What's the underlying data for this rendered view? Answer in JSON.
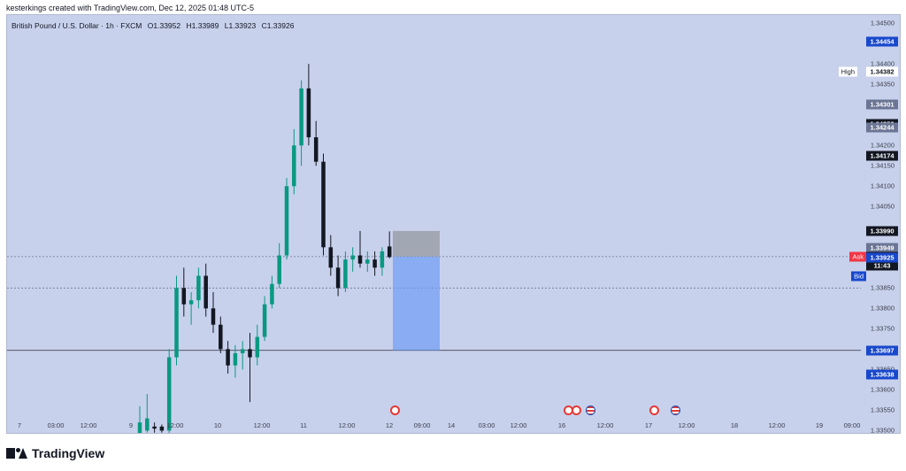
{
  "header": {
    "attribution": "kesterkings created with TradingView.com, Dec 12, 2025 01:48 UTC-5"
  },
  "legend": {
    "symbol": "British Pound / U.S. Dollar · 1h · FXCM",
    "open": "O1.33952",
    "high": "H1.33989",
    "low": "L1.33923",
    "close": "C1.33926"
  },
  "price_axis": {
    "ticks": [
      "1.34500",
      "1.34400",
      "1.34350",
      "1.34200",
      "1.34150",
      "1.34100",
      "1.34050",
      "1.33850",
      "1.33800",
      "1.33750",
      "1.33650",
      "1.33600",
      "1.33550",
      "1.33500"
    ],
    "tags": [
      {
        "value": "1.34454",
        "bg": "#1848cc",
        "fg": "#ffffff"
      },
      {
        "value": "1.34382",
        "bg": "#ffffff",
        "fg": "#131722"
      },
      {
        "value": "1.34301",
        "bg": "#6b7594",
        "fg": "#ffffff"
      },
      {
        "value": "1.34252",
        "bg": "#131722",
        "fg": "#ffffff"
      },
      {
        "value": "1.34244",
        "bg": "#6b7594",
        "fg": "#ffffff"
      },
      {
        "value": "1.34174",
        "bg": "#131722",
        "fg": "#ffffff"
      },
      {
        "value": "1.33990",
        "bg": "#131722",
        "fg": "#ffffff"
      },
      {
        "value": "1.33949",
        "bg": "#6b7594",
        "fg": "#ffffff"
      },
      {
        "value": "1.33927",
        "bg": "#f23645",
        "fg": "#ffffff"
      },
      {
        "value": "1.33926",
        "bg": "#131722",
        "fg": "#ffffff"
      },
      {
        "value": "11:43",
        "bg": "#131722",
        "fg": "#ffffff"
      },
      {
        "value": "1.33925",
        "bg": "#1848cc",
        "fg": "#ffffff"
      },
      {
        "value": "1.33697",
        "bg": "#1848cc",
        "fg": "#ffffff"
      },
      {
        "value": "1.33638",
        "bg": "#1848cc",
        "fg": "#ffffff"
      }
    ],
    "labels": {
      "high": "High",
      "ask": "Ask",
      "bid": "Bid"
    }
  },
  "time_axis": {
    "ticks": [
      "7",
      "03:00",
      "12:00",
      "9",
      "12:00",
      "10",
      "12:00",
      "11",
      "12:00",
      "12",
      "09:00",
      "14",
      "03:00",
      "12:00",
      "16",
      "12:00",
      "17",
      "12:00",
      "18",
      "12:00",
      "19",
      "09:00"
    ]
  },
  "events": [
    {
      "icon": "gb-flag-icon"
    },
    {
      "icon": "gb-flag-icon"
    },
    {
      "icon": "gb-flag-icon"
    },
    {
      "icon": "us-flag-icon"
    },
    {
      "icon": "gb-flag-icon"
    },
    {
      "icon": "us-flag-icon"
    }
  ],
  "chart_data": {
    "type": "candlestick",
    "symbol": "British Pound / U.S. Dollar",
    "timeframe": "1h",
    "ylim": [
      1.3349,
      1.3452
    ],
    "colors": {
      "up": "#089981",
      "down": "#131722"
    },
    "series": [
      {
        "o": 1.3349,
        "h": 1.3356,
        "l": 1.3349,
        "c": 1.3352
      },
      {
        "o": 1.335,
        "h": 1.3359,
        "l": 1.33495,
        "c": 1.3353
      },
      {
        "o": 1.3351,
        "h": 1.3352,
        "l": 1.33495,
        "c": 1.33505
      },
      {
        "o": 1.3351,
        "h": 1.33515,
        "l": 1.33495,
        "c": 1.335
      },
      {
        "o": 1.335,
        "h": 1.337,
        "l": 1.3349,
        "c": 1.3368
      },
      {
        "o": 1.3368,
        "h": 1.3388,
        "l": 1.3366,
        "c": 1.3385
      },
      {
        "o": 1.3385,
        "h": 1.339,
        "l": 1.3378,
        "c": 1.3381
      },
      {
        "o": 1.3381,
        "h": 1.3384,
        "l": 1.3376,
        "c": 1.3382
      },
      {
        "o": 1.3382,
        "h": 1.339,
        "l": 1.338,
        "c": 1.3388
      },
      {
        "o": 1.3388,
        "h": 1.3391,
        "l": 1.3378,
        "c": 1.338
      },
      {
        "o": 1.338,
        "h": 1.3384,
        "l": 1.3374,
        "c": 1.3376
      },
      {
        "o": 1.3376,
        "h": 1.3378,
        "l": 1.3369,
        "c": 1.337
      },
      {
        "o": 1.337,
        "h": 1.3372,
        "l": 1.3364,
        "c": 1.3366
      },
      {
        "o": 1.3366,
        "h": 1.3371,
        "l": 1.3363,
        "c": 1.3369
      },
      {
        "o": 1.3369,
        "h": 1.3372,
        "l": 1.3365,
        "c": 1.337
      },
      {
        "o": 1.337,
        "h": 1.3374,
        "l": 1.3357,
        "c": 1.3368
      },
      {
        "o": 1.3368,
        "h": 1.3376,
        "l": 1.3366,
        "c": 1.3373
      },
      {
        "o": 1.3373,
        "h": 1.3383,
        "l": 1.3372,
        "c": 1.3381
      },
      {
        "o": 1.3381,
        "h": 1.3388,
        "l": 1.338,
        "c": 1.3386
      },
      {
        "o": 1.3386,
        "h": 1.3396,
        "l": 1.3385,
        "c": 1.3393
      },
      {
        "o": 1.3393,
        "h": 1.3412,
        "l": 1.3392,
        "c": 1.341
      },
      {
        "o": 1.341,
        "h": 1.3424,
        "l": 1.3408,
        "c": 1.342
      },
      {
        "o": 1.342,
        "h": 1.3436,
        "l": 1.3415,
        "c": 1.3434
      },
      {
        "o": 1.3434,
        "h": 1.344,
        "l": 1.342,
        "c": 1.3422
      },
      {
        "o": 1.3422,
        "h": 1.3426,
        "l": 1.3415,
        "c": 1.3416
      },
      {
        "o": 1.3416,
        "h": 1.3418,
        "l": 1.3393,
        "c": 1.3395
      },
      {
        "o": 1.3395,
        "h": 1.3398,
        "l": 1.3388,
        "c": 1.339
      },
      {
        "o": 1.339,
        "h": 1.3393,
        "l": 1.3383,
        "c": 1.3385
      },
      {
        "o": 1.3385,
        "h": 1.3394,
        "l": 1.3384,
        "c": 1.3392
      },
      {
        "o": 1.3392,
        "h": 1.3395,
        "l": 1.3389,
        "c": 1.3393
      },
      {
        "o": 1.3393,
        "h": 1.3399,
        "l": 1.339,
        "c": 1.3391
      },
      {
        "o": 1.3391,
        "h": 1.3394,
        "l": 1.3389,
        "c": 1.3392
      },
      {
        "o": 1.3392,
        "h": 1.3394,
        "l": 1.3388,
        "c": 1.339
      },
      {
        "o": 1.339,
        "h": 1.3395,
        "l": 1.3388,
        "c": 1.3394
      },
      {
        "o": 1.33952,
        "h": 1.33989,
        "l": 1.33923,
        "c": 1.33926
      }
    ],
    "position": {
      "entry": 1.33927,
      "stop": 1.3399,
      "target": 1.33697
    },
    "horizontal_lines": [
      1.33927,
      1.3385,
      1.33697
    ]
  }
}
